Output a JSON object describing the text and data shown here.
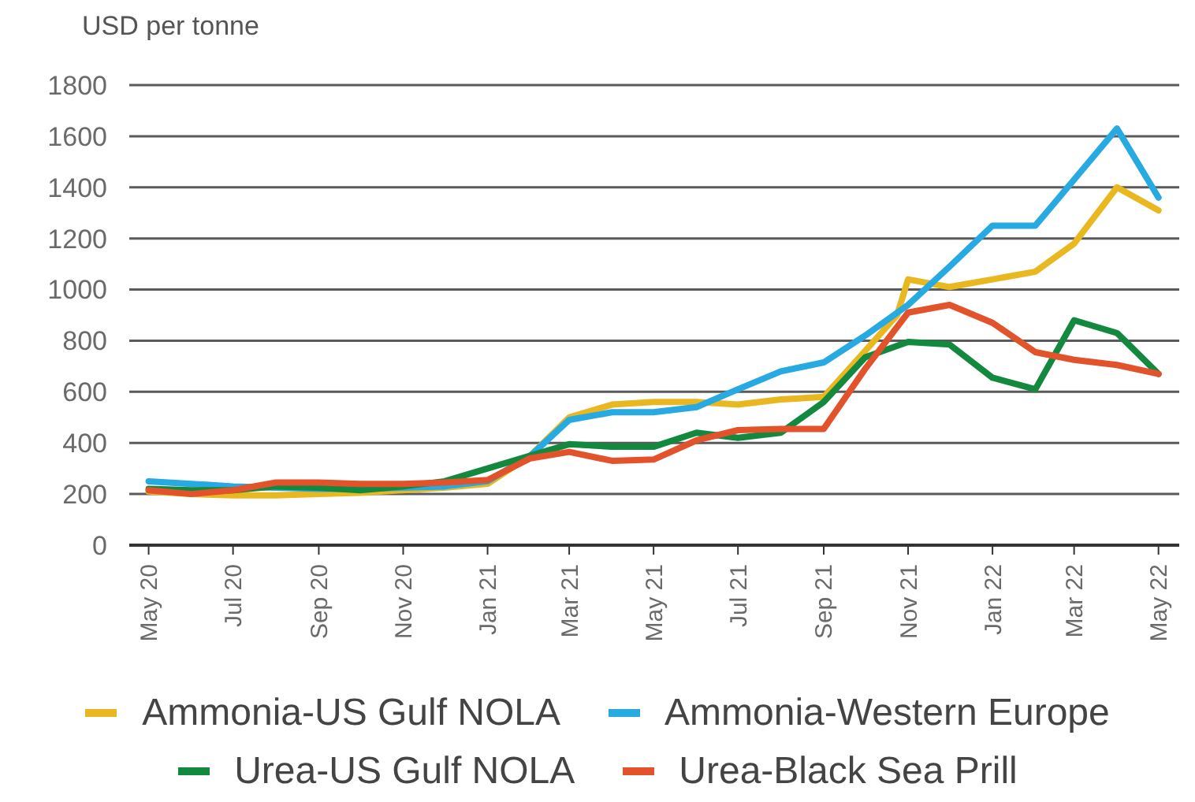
{
  "chart_data": {
    "type": "line",
    "ylabel": "USD per tonne",
    "x": [
      "2020-05",
      "2020-06",
      "2020-07",
      "2020-08",
      "2020-09",
      "2020-10",
      "2020-11",
      "2020-12",
      "2021-01",
      "2021-02",
      "2021-03",
      "2021-04",
      "2021-05",
      "2021-06",
      "2021-07",
      "2021-08",
      "2021-09",
      "2021-10",
      "2021-11",
      "2021-12",
      "2022-01",
      "2022-02",
      "2022-03",
      "2022-04",
      "2022-05"
    ],
    "xlim": [
      "2020-04-17",
      "2022-05-16"
    ],
    "xticks": [
      {
        "value": "2020-05",
        "label": "May 20"
      },
      {
        "value": "2020-07",
        "label": "Jul 20"
      },
      {
        "value": "2020-09",
        "label": "Sep 20"
      },
      {
        "value": "2020-11",
        "label": "Nov 20"
      },
      {
        "value": "2021-01",
        "label": "Jan 21"
      },
      {
        "value": "2021-03",
        "label": "Mar 21"
      },
      {
        "value": "2021-05",
        "label": "May 21"
      },
      {
        "value": "2021-07",
        "label": "Jul 21"
      },
      {
        "value": "2021-09",
        "label": "Sep 21"
      },
      {
        "value": "2021-11",
        "label": "Nov 21"
      },
      {
        "value": "2022-01",
        "label": "Jan 22"
      },
      {
        "value": "2022-03",
        "label": "Mar 22"
      },
      {
        "value": "2022-05",
        "label": "May 22"
      }
    ],
    "ylim": [
      0,
      1800
    ],
    "yticks": [
      0,
      200,
      400,
      600,
      800,
      1000,
      1200,
      1400,
      1600,
      1800
    ],
    "grid": "y",
    "legend": "bottom",
    "marker": "none",
    "line_style": "solid",
    "series": [
      {
        "name": "Ammonia-US Gulf NOLA",
        "color": "#e9b820",
        "x": [
          "2020-05",
          "2020-06",
          "2020-07",
          "2020-08",
          "2020-09",
          "2020-10",
          "2020-11",
          "2020-12",
          "2021-01",
          "2021-02",
          "2021-03",
          "2021-04",
          "2021-05",
          "2021-06",
          "2021-07",
          "2021-08",
          "2021-09",
          "2021-10",
          "2021-10-24",
          "2021-11",
          "2021-12",
          "2022-01",
          "2022-02",
          "2022-03",
          "2022-04",
          "2022-05"
        ],
        "values": [
          210,
          200,
          195,
          195,
          200,
          205,
          215,
          225,
          240,
          350,
          500,
          550,
          560,
          560,
          550,
          570,
          580,
          760,
          900,
          1040,
          1010,
          1040,
          1070,
          1180,
          1400,
          1310
        ]
      },
      {
        "name": "Ammonia-Western Europe",
        "color": "#27a9e1",
        "values": [
          250,
          240,
          230,
          225,
          220,
          220,
          225,
          230,
          250,
          350,
          490,
          520,
          520,
          540,
          610,
          680,
          715,
          820,
          940,
          1090,
          1250,
          1250,
          1430,
          1630,
          1360
        ]
      },
      {
        "name": "Urea-US Gulf NOLA",
        "color": "#13893f",
        "values": [
          220,
          215,
          215,
          230,
          225,
          215,
          230,
          250,
          300,
          350,
          395,
          385,
          385,
          440,
          420,
          440,
          560,
          735,
          795,
          785,
          655,
          610,
          880,
          830,
          670
        ]
      },
      {
        "name": "Urea-Black Sea Prill",
        "color": "#e2532b",
        "values": [
          215,
          200,
          215,
          245,
          245,
          240,
          240,
          245,
          255,
          340,
          365,
          330,
          335,
          410,
          450,
          455,
          455,
          690,
          910,
          940,
          870,
          755,
          725,
          705,
          670
        ]
      }
    ]
  }
}
